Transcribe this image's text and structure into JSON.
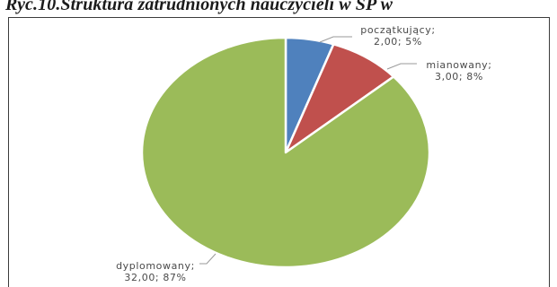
{
  "caption": "Ryc.10.Struktura zatrudnionych nauczycieli w SP w",
  "chart_data": {
    "type": "pie",
    "title": "",
    "slices": [
      {
        "name": "początkujący",
        "value": 2.0,
        "percent": "5%",
        "value_label": "2,00; 5%",
        "color": "#4f81bd"
      },
      {
        "name": "mianowany",
        "value": 3.0,
        "percent": "8%",
        "value_label": "3,00; 8%",
        "color": "#c0504d"
      },
      {
        "name": "dyplomowany",
        "value": 32.0,
        "percent": "87%",
        "value_label": "32,00; 87%",
        "color": "#9bbb59"
      }
    ],
    "start_angle_deg": 0,
    "direction": "clockwise",
    "legend": "none"
  }
}
